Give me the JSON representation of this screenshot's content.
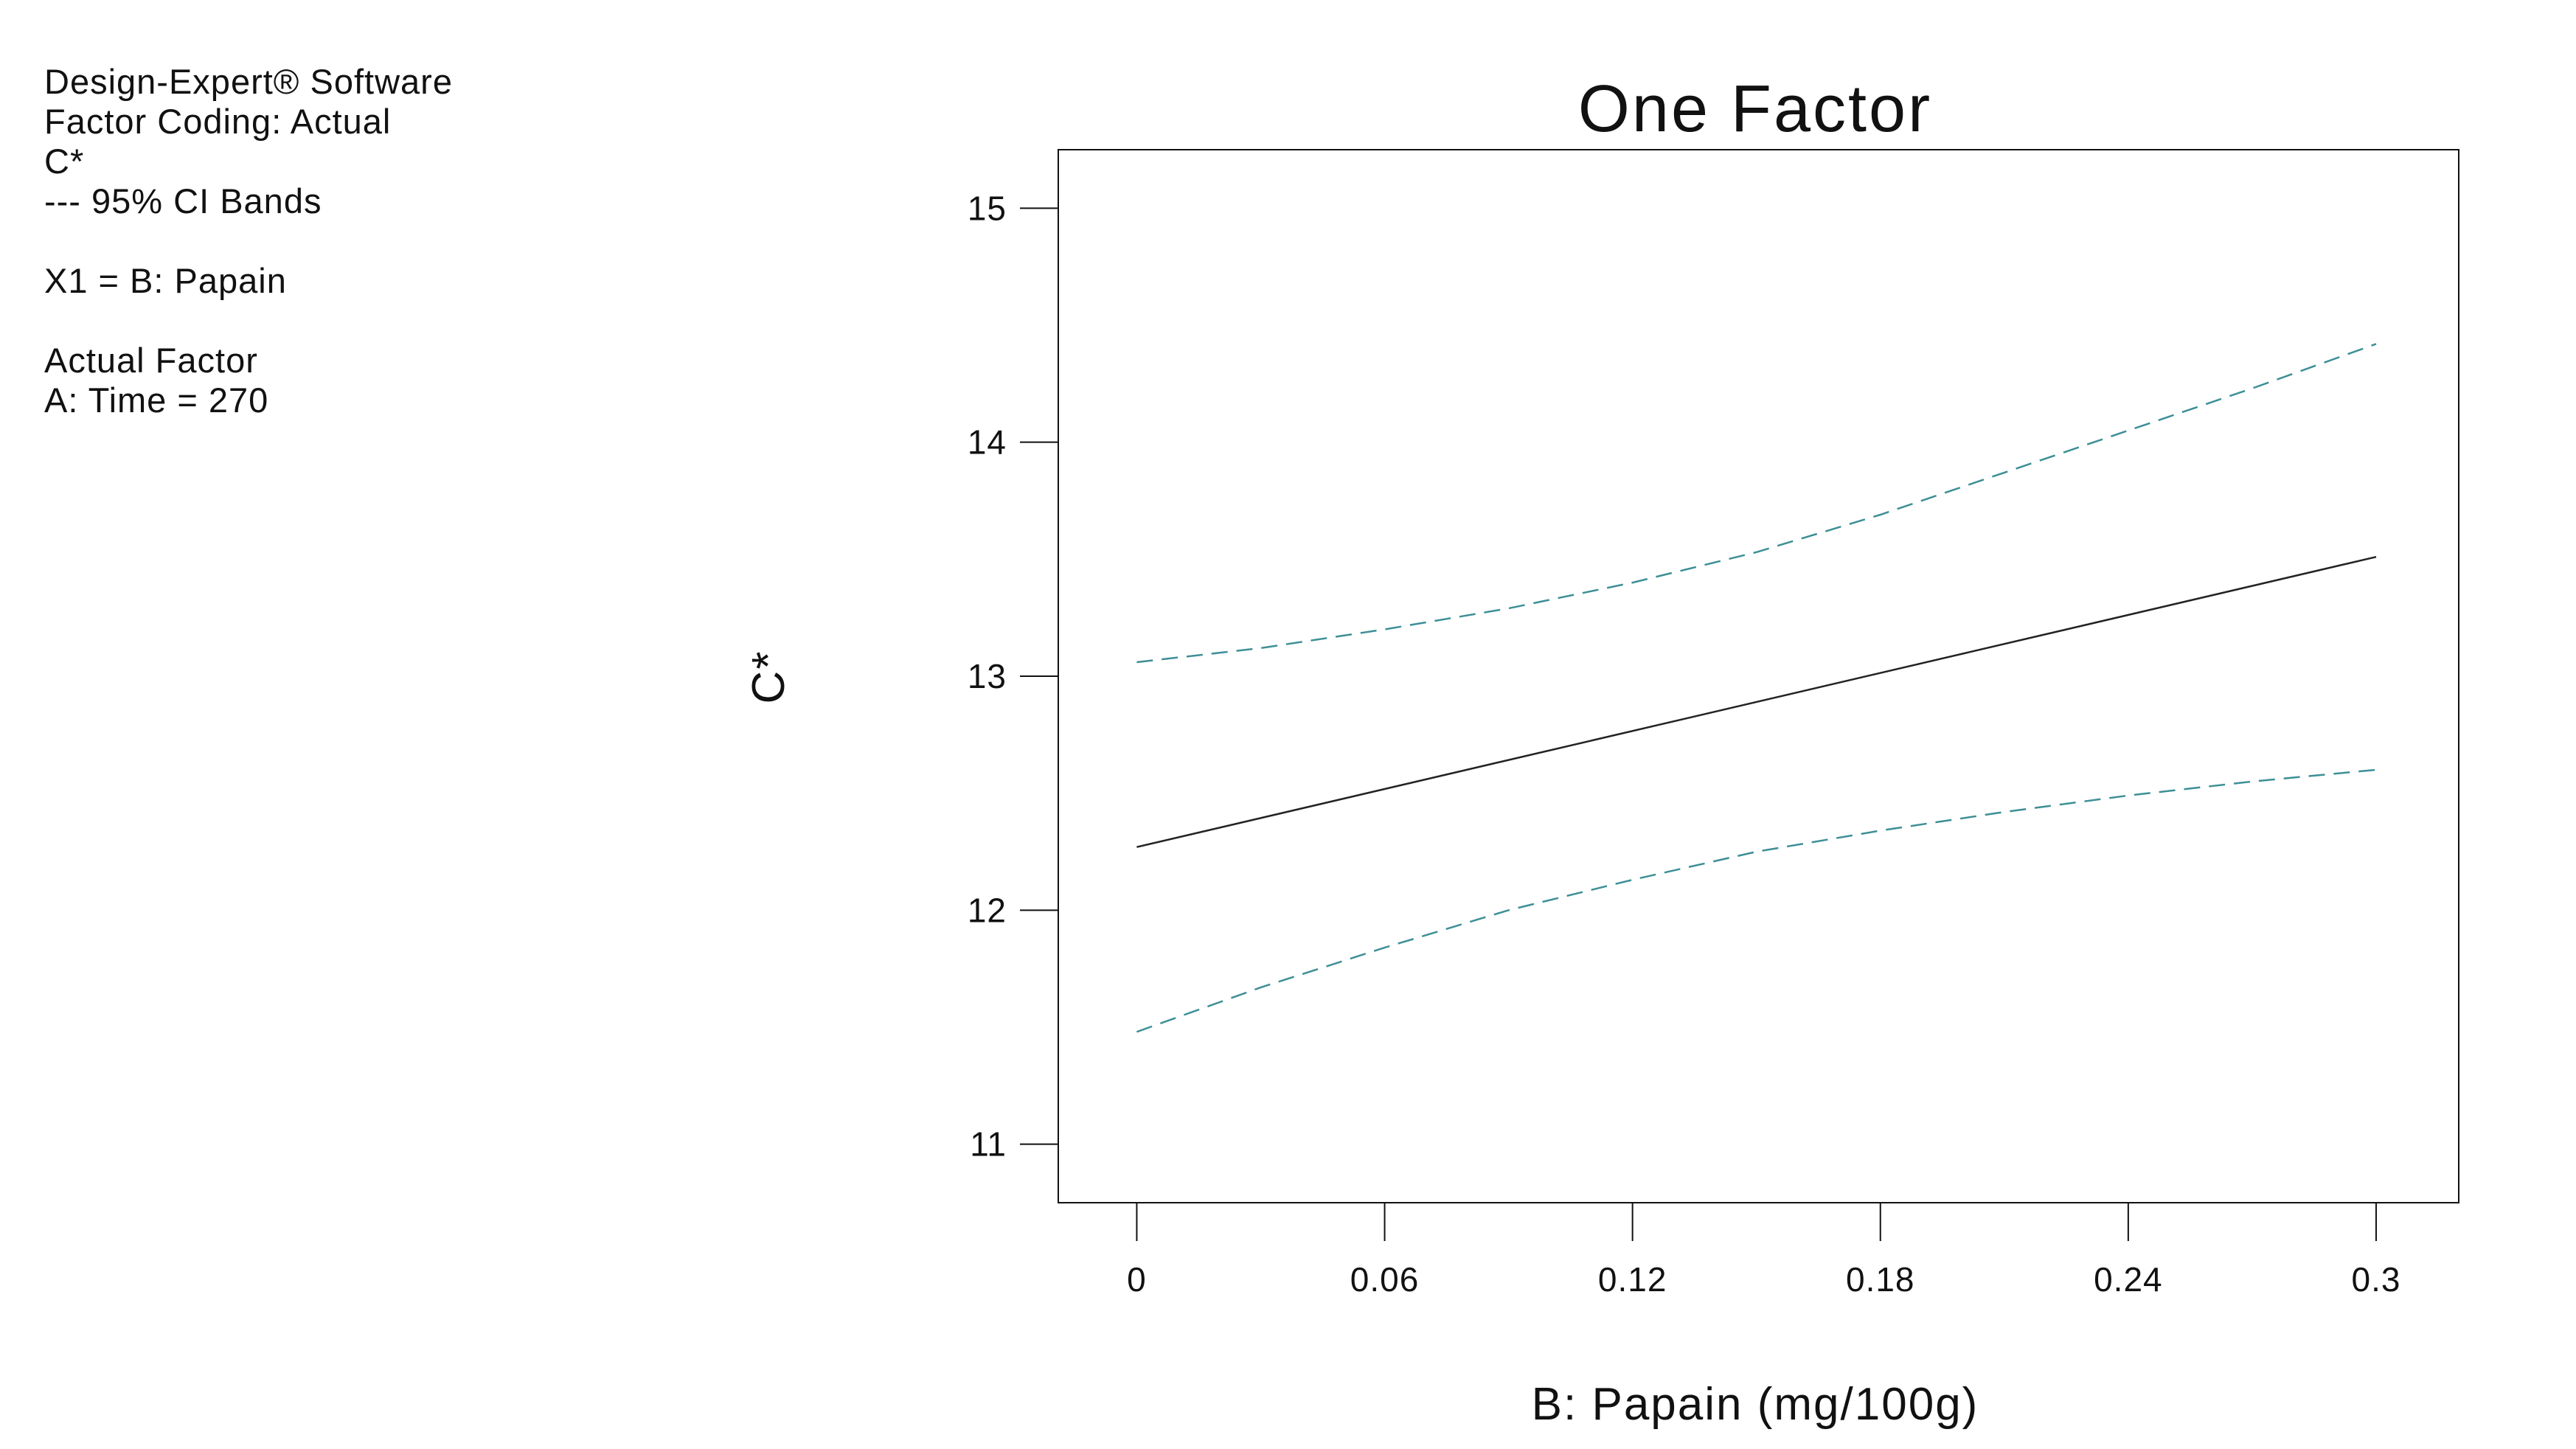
{
  "info": {
    "software": "Design-Expert® Software",
    "factor_coding": "Factor Coding: Actual",
    "response": "C*",
    "ci_bands": "--- 95% CI Bands",
    "x1": "X1 = B: Papain",
    "actual_factor_heading": "Actual Factor",
    "actual_factor_value": "A: Time = 270"
  },
  "colors": {
    "prediction_line": "#222222",
    "ci_band": "#3d8f96",
    "axis": "#111111"
  },
  "chart_data": {
    "type": "line",
    "title": "One Factor",
    "xlabel": "B: Papain (mg/100g)",
    "ylabel": "C*",
    "xlim": [
      -0.019,
      0.32
    ],
    "ylim": [
      10.75,
      15.25
    ],
    "xticks": [
      0,
      0.06,
      0.12,
      0.18,
      0.24,
      0.3
    ],
    "xtick_labels": [
      "0",
      "0.06",
      "0.12",
      "0.18",
      "0.24",
      "0.3"
    ],
    "yticks": [
      11,
      12,
      13,
      14,
      15
    ],
    "ytick_labels": [
      "11",
      "12",
      "13",
      "14",
      "15"
    ],
    "grid": false,
    "series": [
      {
        "name": "Prediction",
        "style": "solid",
        "x": [
          0,
          0.3
        ],
        "y": [
          12.27,
          13.51
        ]
      },
      {
        "name": "95% CI Upper",
        "style": "dashed",
        "x": [
          0,
          0.03,
          0.06,
          0.09,
          0.12,
          0.15,
          0.18,
          0.21,
          0.24,
          0.27,
          0.3
        ],
        "y": [
          13.06,
          13.12,
          13.2,
          13.29,
          13.4,
          13.53,
          13.69,
          13.87,
          14.05,
          14.23,
          14.42
        ]
      },
      {
        "name": "95% CI Lower",
        "style": "dashed",
        "x": [
          0,
          0.03,
          0.06,
          0.09,
          0.12,
          0.15,
          0.18,
          0.21,
          0.24,
          0.27,
          0.3
        ],
        "y": [
          11.48,
          11.67,
          11.84,
          12.0,
          12.13,
          12.25,
          12.34,
          12.42,
          12.49,
          12.55,
          12.6
        ]
      }
    ]
  }
}
